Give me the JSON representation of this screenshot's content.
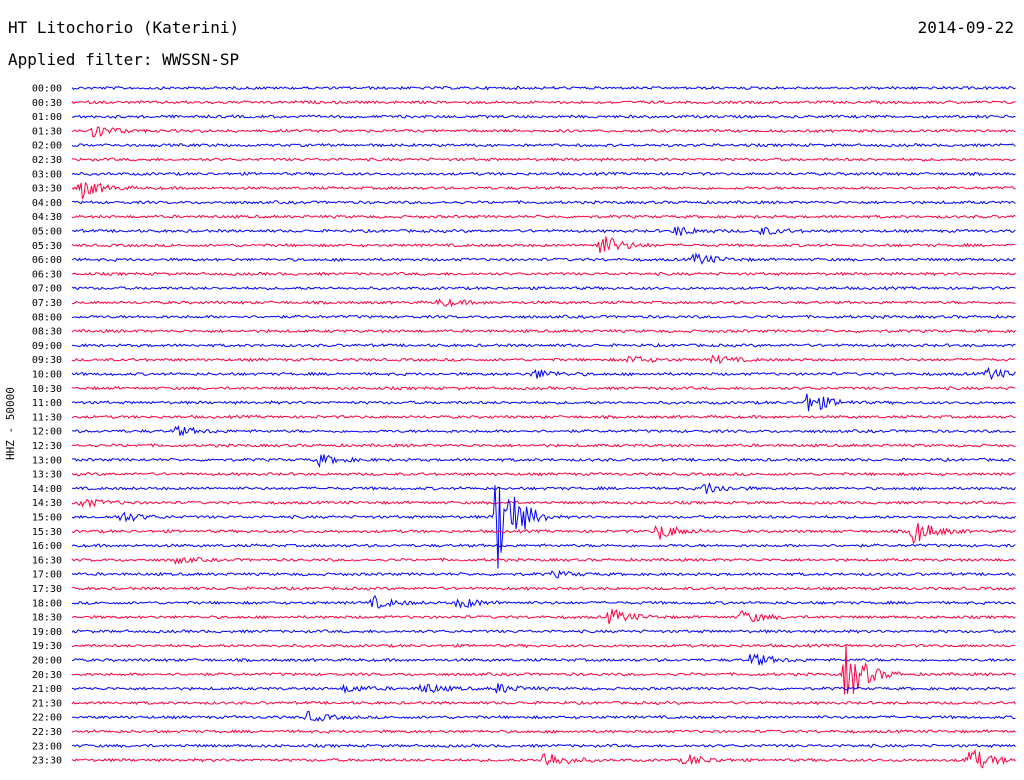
{
  "header": {
    "station": "HT Litochorio (Katerini)",
    "filter": "Applied filter: WWSSN-SP",
    "date": "2014-09-22",
    "channel": "HHZ - 50000"
  },
  "colors": {
    "trace_a": "#0000ff",
    "trace_b": "#ff0040"
  },
  "chart_data": {
    "type": "line",
    "rows": [
      {
        "label": "00:00",
        "color": "#0000ff",
        "events": []
      },
      {
        "label": "00:30",
        "color": "#ff0040",
        "events": []
      },
      {
        "label": "01:00",
        "color": "#0000ff",
        "events": []
      },
      {
        "label": "01:30",
        "color": "#ff0040",
        "events": [
          {
            "t": 0.02,
            "a": 8
          }
        ]
      },
      {
        "label": "02:00",
        "color": "#0000ff",
        "events": []
      },
      {
        "label": "02:30",
        "color": "#ff0040",
        "events": []
      },
      {
        "label": "03:00",
        "color": "#0000ff",
        "events": []
      },
      {
        "label": "03:30",
        "color": "#ff0040",
        "events": [
          {
            "t": 0.01,
            "a": 10
          }
        ]
      },
      {
        "label": "04:00",
        "color": "#0000ff",
        "events": []
      },
      {
        "label": "04:30",
        "color": "#ff0040",
        "events": []
      },
      {
        "label": "05:00",
        "color": "#0000ff",
        "events": [
          {
            "t": 0.64,
            "a": 5
          },
          {
            "t": 0.73,
            "a": 4
          }
        ]
      },
      {
        "label": "05:30",
        "color": "#ff0040",
        "events": [
          {
            "t": 0.56,
            "a": 12
          }
        ]
      },
      {
        "label": "06:00",
        "color": "#0000ff",
        "events": [
          {
            "t": 0.66,
            "a": 6
          }
        ]
      },
      {
        "label": "06:30",
        "color": "#ff0040",
        "events": []
      },
      {
        "label": "07:00",
        "color": "#0000ff",
        "events": []
      },
      {
        "label": "07:30",
        "color": "#ff0040",
        "events": [
          {
            "t": 0.39,
            "a": 4
          }
        ]
      },
      {
        "label": "08:00",
        "color": "#0000ff",
        "events": []
      },
      {
        "label": "08:30",
        "color": "#ff0040",
        "events": []
      },
      {
        "label": "09:00",
        "color": "#0000ff",
        "events": []
      },
      {
        "label": "09:30",
        "color": "#ff0040",
        "events": [
          {
            "t": 0.59,
            "a": 4
          },
          {
            "t": 0.68,
            "a": 4
          }
        ]
      },
      {
        "label": "10:00",
        "color": "#0000ff",
        "events": [
          {
            "t": 0.49,
            "a": 5
          },
          {
            "t": 0.97,
            "a": 6
          }
        ]
      },
      {
        "label": "10:30",
        "color": "#ff0040",
        "events": []
      },
      {
        "label": "11:00",
        "color": "#0000ff",
        "events": [
          {
            "t": 0.78,
            "a": 12
          }
        ]
      },
      {
        "label": "11:30",
        "color": "#ff0040",
        "events": []
      },
      {
        "label": "12:00",
        "color": "#0000ff",
        "events": [
          {
            "t": 0.11,
            "a": 5
          }
        ]
      },
      {
        "label": "12:30",
        "color": "#ff0040",
        "events": []
      },
      {
        "label": "13:00",
        "color": "#0000ff",
        "events": [
          {
            "t": 0.26,
            "a": 6
          }
        ]
      },
      {
        "label": "13:30",
        "color": "#ff0040",
        "events": []
      },
      {
        "label": "14:00",
        "color": "#0000ff",
        "events": [
          {
            "t": 0.67,
            "a": 6
          }
        ]
      },
      {
        "label": "14:30",
        "color": "#ff0040",
        "events": [
          {
            "t": 0.01,
            "a": 5
          }
        ]
      },
      {
        "label": "15:00",
        "color": "#0000ff",
        "events": [
          {
            "t": 0.05,
            "a": 6
          },
          {
            "t": 0.45,
            "a": 60
          }
        ]
      },
      {
        "label": "15:30",
        "color": "#ff0040",
        "events": [
          {
            "t": 0.62,
            "a": 9
          },
          {
            "t": 0.89,
            "a": 14
          }
        ]
      },
      {
        "label": "16:00",
        "color": "#0000ff",
        "events": []
      },
      {
        "label": "16:30",
        "color": "#ff0040",
        "events": [
          {
            "t": 0.11,
            "a": 3
          }
        ]
      },
      {
        "label": "17:00",
        "color": "#0000ff",
        "events": [
          {
            "t": 0.51,
            "a": 3
          }
        ]
      },
      {
        "label": "17:30",
        "color": "#ff0040",
        "events": []
      },
      {
        "label": "18:00",
        "color": "#0000ff",
        "events": [
          {
            "t": 0.32,
            "a": 6
          },
          {
            "t": 0.41,
            "a": 6
          }
        ]
      },
      {
        "label": "18:30",
        "color": "#ff0040",
        "events": [
          {
            "t": 0.57,
            "a": 8
          },
          {
            "t": 0.71,
            "a": 7
          }
        ]
      },
      {
        "label": "19:00",
        "color": "#0000ff",
        "events": []
      },
      {
        "label": "19:30",
        "color": "#ff0040",
        "events": []
      },
      {
        "label": "20:00",
        "color": "#0000ff",
        "events": [
          {
            "t": 0.72,
            "a": 7
          }
        ]
      },
      {
        "label": "20:30",
        "color": "#ff0040",
        "events": [
          {
            "t": 0.82,
            "a": 30
          }
        ]
      },
      {
        "label": "21:00",
        "color": "#0000ff",
        "events": [
          {
            "t": 0.29,
            "a": 4
          },
          {
            "t": 0.37,
            "a": 6
          },
          {
            "t": 0.45,
            "a": 5
          }
        ]
      },
      {
        "label": "21:30",
        "color": "#ff0040",
        "events": []
      },
      {
        "label": "22:00",
        "color": "#0000ff",
        "events": [
          {
            "t": 0.25,
            "a": 5
          }
        ]
      },
      {
        "label": "22:30",
        "color": "#ff0040",
        "events": []
      },
      {
        "label": "23:00",
        "color": "#0000ff",
        "events": []
      },
      {
        "label": "23:30",
        "color": "#ff0040",
        "events": [
          {
            "t": 0.5,
            "a": 10
          },
          {
            "t": 0.65,
            "a": 6
          },
          {
            "t": 0.95,
            "a": 14
          }
        ]
      }
    ]
  }
}
